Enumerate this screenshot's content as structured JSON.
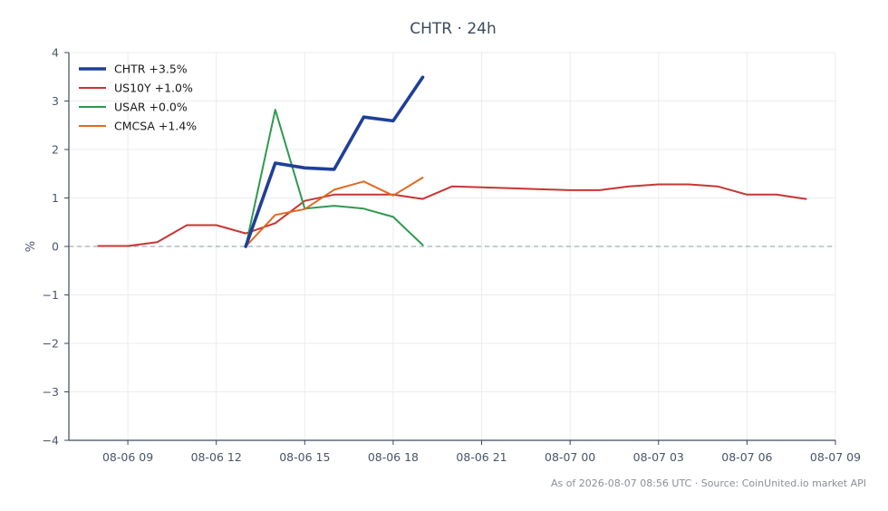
{
  "chart_data": {
    "type": "line",
    "title": "CHTR · 24h",
    "ylabel": "%",
    "xlabel": "",
    "ylim": [
      -4,
      4
    ],
    "xlim": [
      "2026-08-06 07:00",
      "2026-08-07 09:00"
    ],
    "y_ticks": [
      -4,
      -3,
      -2,
      -1,
      0,
      1,
      2,
      3,
      4
    ],
    "y_tick_labels": [
      "−4",
      "−3",
      "−2",
      "−1",
      "0",
      "1",
      "2",
      "3",
      "4"
    ],
    "x_ticks": [
      "2026-08-06 09:00",
      "2026-08-06 12:00",
      "2026-08-06 15:00",
      "2026-08-06 18:00",
      "2026-08-06 21:00",
      "2026-08-07 00:00",
      "2026-08-07 03:00",
      "2026-08-07 06:00",
      "2026-08-07 09:00"
    ],
    "x_tick_labels": [
      "08-06 09",
      "08-06 12",
      "08-06 15",
      "08-06 18",
      "08-06 21",
      "08-07 00",
      "08-07 03",
      "08-07 06",
      "08-07 09"
    ],
    "grid": true,
    "zero_line": true,
    "legend_position": "top-left",
    "series": [
      {
        "name": "CHTR +3.5%",
        "color": "#1f3f99",
        "emphasis": true,
        "x": [
          "2026-08-06 13:00",
          "2026-08-06 14:00",
          "2026-08-06 15:00",
          "2026-08-06 16:00",
          "2026-08-06 17:00",
          "2026-08-06 18:00",
          "2026-08-06 19:00"
        ],
        "values": [
          0.0,
          1.72,
          1.62,
          1.59,
          2.67,
          2.59,
          3.49
        ]
      },
      {
        "name": "US10Y +1.0%",
        "color": "#c93434",
        "x": [
          "2026-08-06 08:00",
          "2026-08-06 09:00",
          "2026-08-06 10:00",
          "2026-08-06 11:00",
          "2026-08-06 12:00",
          "2026-08-06 13:00",
          "2026-08-06 14:00",
          "2026-08-06 15:00",
          "2026-08-06 16:00",
          "2026-08-06 17:00",
          "2026-08-06 18:00",
          "2026-08-06 19:00",
          "2026-08-06 20:00",
          "2026-08-06 21:00",
          "2026-08-06 22:00",
          "2026-08-06 23:00",
          "2026-08-07 00:00",
          "2026-08-07 01:00",
          "2026-08-07 02:00",
          "2026-08-07 03:00",
          "2026-08-07 04:00",
          "2026-08-07 05:00",
          "2026-08-07 06:00",
          "2026-08-07 07:00",
          "2026-08-07 08:00"
        ],
        "values": [
          0.01,
          0.01,
          0.09,
          0.44,
          0.44,
          0.27,
          0.48,
          0.94,
          1.07,
          1.07,
          1.07,
          0.98,
          1.24,
          1.22,
          1.2,
          1.18,
          1.16,
          1.16,
          1.24,
          1.28,
          1.28,
          1.24,
          1.07,
          1.07,
          0.98
        ]
      },
      {
        "name": "USAR +0.0%",
        "color": "#2e9a4f",
        "x": [
          "2026-08-06 13:00",
          "2026-08-06 14:00",
          "2026-08-06 15:00",
          "2026-08-06 16:00",
          "2026-08-06 17:00",
          "2026-08-06 18:00",
          "2026-08-06 19:00"
        ],
        "values": [
          0.0,
          2.82,
          0.78,
          0.84,
          0.78,
          0.61,
          0.03
        ]
      },
      {
        "name": "CMCSA +1.4%",
        "color": "#e06a1f",
        "x": [
          "2026-08-06 13:00",
          "2026-08-06 14:00",
          "2026-08-06 15:00",
          "2026-08-06 16:00",
          "2026-08-06 17:00",
          "2026-08-06 18:00",
          "2026-08-06 19:00"
        ],
        "values": [
          0.0,
          0.65,
          0.77,
          1.17,
          1.34,
          1.05,
          1.42
        ]
      }
    ],
    "footer": "As of 2026-08-07 08:56 UTC · Source: CoinUnited.io market API"
  },
  "colors": {
    "grid": "#e9ecef",
    "axis": "#3d4a5c",
    "zero_line": "#8a9bb0"
  }
}
